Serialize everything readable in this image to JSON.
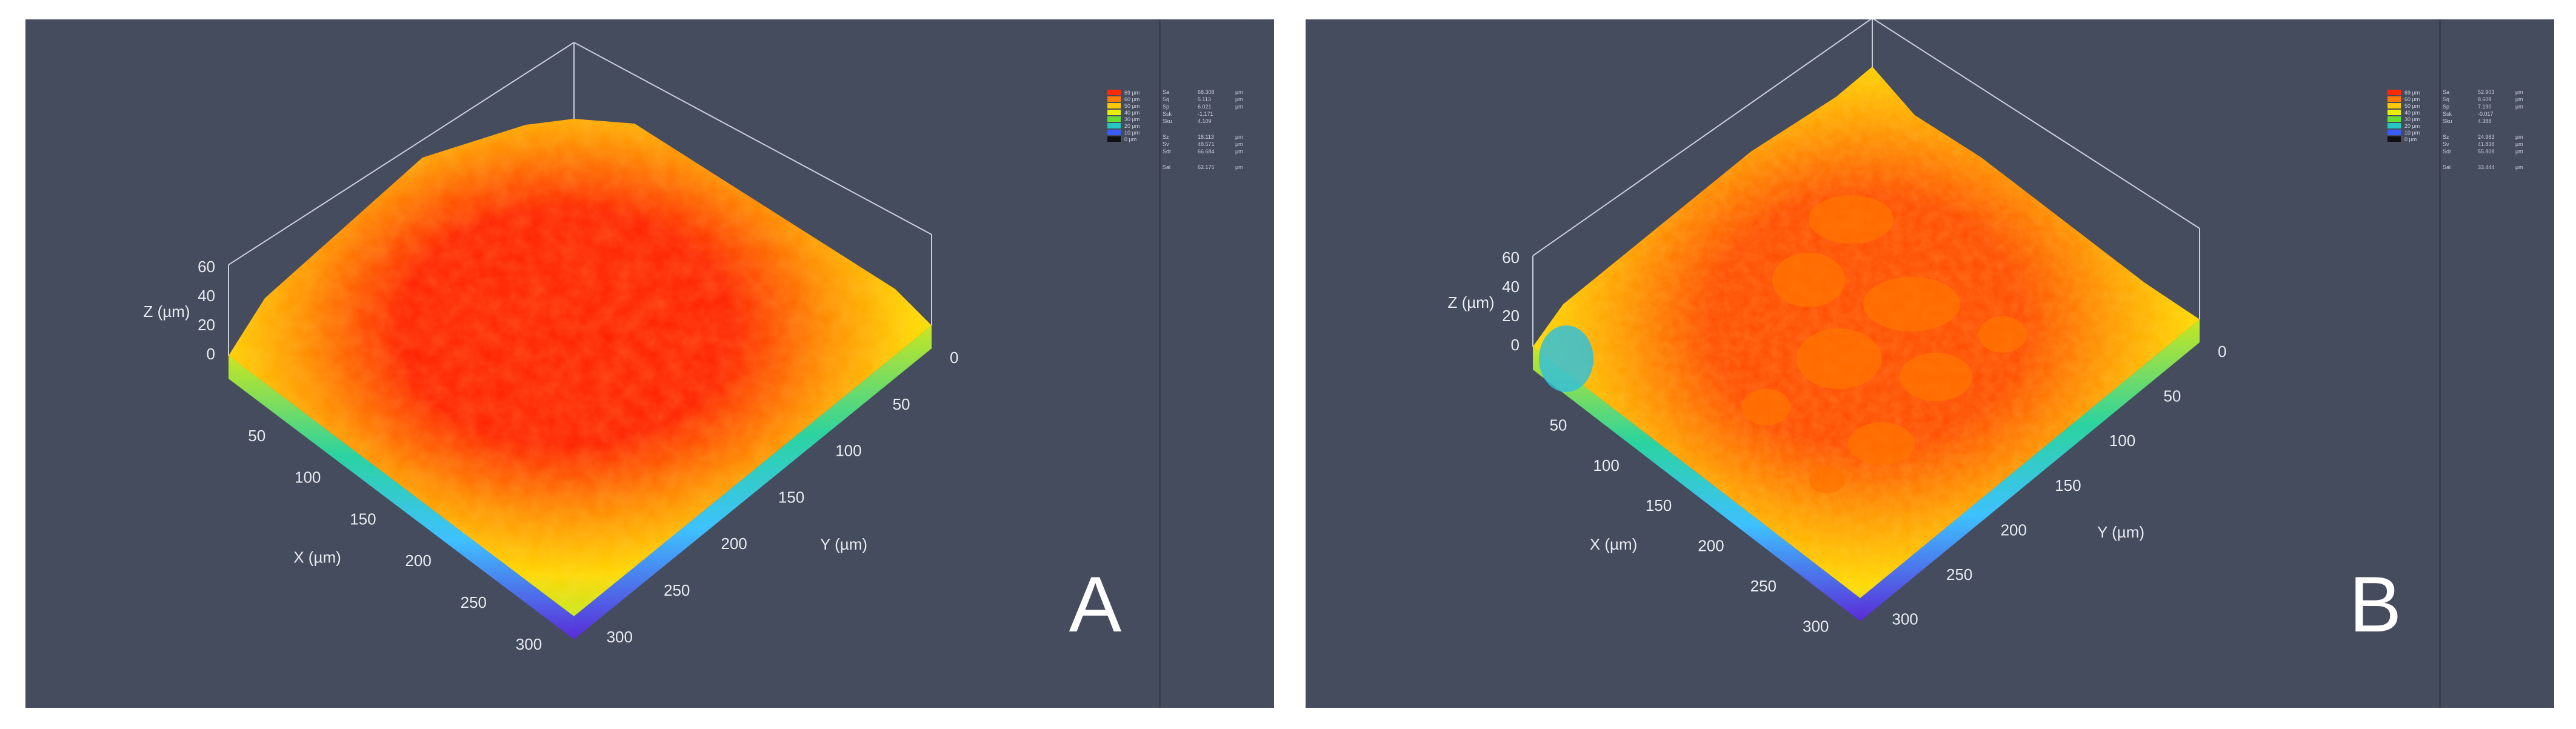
{
  "panels": [
    {
      "id": "A",
      "letter": "A",
      "colors": {
        "peak": "#ff1f00",
        "high": "#ff8a00",
        "mid": "#ffd500",
        "low": "#c6e81a",
        "base": "#2bd39a"
      },
      "z_axis": {
        "label": "Z (µm)",
        "ticks": [
          "60",
          "40",
          "20",
          "0"
        ]
      },
      "x_axis": {
        "label": "X (µm)",
        "ticks": [
          "50",
          "100",
          "150",
          "200",
          "250",
          "300"
        ]
      },
      "y_axis": {
        "label": "Y (µm)",
        "ticks": [
          "0",
          "50",
          "100",
          "150",
          "200",
          "250",
          "300"
        ]
      },
      "legend": [
        "69 µm",
        "60 µm",
        "50 µm",
        "40 µm",
        "30 µm",
        "20 µm",
        "10 µm",
        "0 µm"
      ],
      "stats": [
        {
          "n": "Sa",
          "v": "68.308",
          "u": "µm"
        },
        {
          "n": "Sq",
          "v": "5.113",
          "u": "µm"
        },
        {
          "n": "Sp",
          "v": "6.021",
          "u": "µm"
        },
        {
          "n": "Ssk",
          "v": "-1.171",
          "u": ""
        },
        {
          "n": "Sku",
          "v": "4.109",
          "u": ""
        },
        {
          "n": "Sz",
          "v": "18.113",
          "u": "µm"
        },
        {
          "n": "Sv",
          "v": "48.571",
          "u": "µm"
        },
        {
          "n": "Sdr",
          "v": "66.684",
          "u": "µm"
        },
        {
          "n": "Sal",
          "v": "62.175",
          "u": "µm"
        }
      ]
    },
    {
      "id": "B",
      "letter": "B",
      "colors": {
        "peak": "#ff4a00",
        "high": "#ff9a00",
        "mid": "#ffd800",
        "low": "#a6e21e",
        "base": "#2fc39f"
      },
      "z_axis": {
        "label": "Z (µm)",
        "ticks": [
          "60",
          "40",
          "20",
          "0"
        ]
      },
      "x_axis": {
        "label": "X (µm)",
        "ticks": [
          "50",
          "100",
          "150",
          "200",
          "250",
          "300"
        ]
      },
      "y_axis": {
        "label": "Y (µm)",
        "ticks": [
          "0",
          "50",
          "100",
          "150",
          "200",
          "250",
          "300"
        ]
      },
      "legend": [
        "69 µm",
        "60 µm",
        "50 µm",
        "40 µm",
        "30 µm",
        "20 µm",
        "10 µm",
        "0 µm"
      ],
      "stats": [
        {
          "n": "Sa",
          "v": "52.903",
          "u": "µm"
        },
        {
          "n": "Sq",
          "v": "8.608",
          "u": "µm"
        },
        {
          "n": "Sp",
          "v": "7.190",
          "u": "µm"
        },
        {
          "n": "Ssk",
          "v": "-0.017",
          "u": ""
        },
        {
          "n": "Sku",
          "v": "4.388",
          "u": ""
        },
        {
          "n": "Sz",
          "v": "24.983",
          "u": "µm"
        },
        {
          "n": "Sv",
          "v": "41.838",
          "u": "µm"
        },
        {
          "n": "Sdr",
          "v": "55.808",
          "u": "µm"
        },
        {
          "n": "Sal",
          "v": "33.444",
          "u": "µm"
        }
      ]
    }
  ]
}
